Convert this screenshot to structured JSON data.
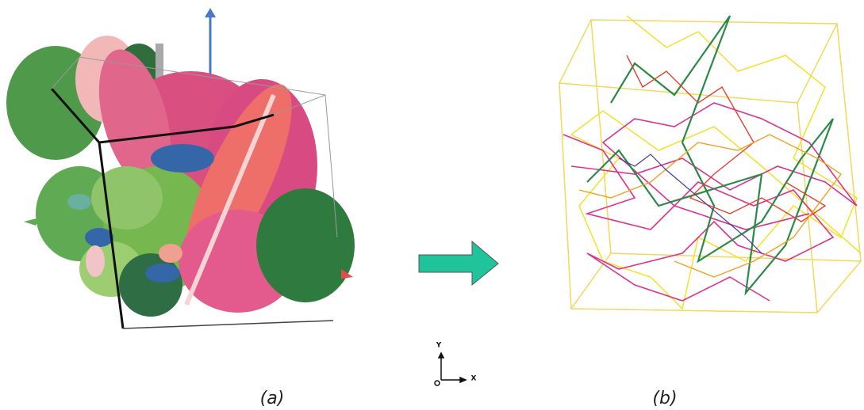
{
  "panels": [
    {
      "caption": "(a)"
    },
    {
      "caption": "(b)"
    }
  ],
  "axes_icon": {
    "y_label": "Y",
    "x_label": "X"
  }
}
